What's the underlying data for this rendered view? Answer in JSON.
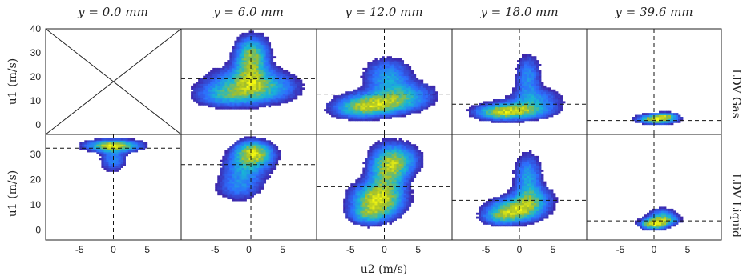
{
  "figure": {
    "column_titles": [
      "y = 0.0 mm",
      "y = 6.0 mm",
      "y = 12.0 mm",
      "y = 18.0 mm",
      "y = 39.6 mm"
    ],
    "row_labels": [
      "LDV Gas",
      "LDV Liquid"
    ],
    "xlabel": "u2 (m/s)",
    "ylabel": "u1 (m/s)"
  },
  "chart_data": {
    "type": "heatmap",
    "description_axes": {
      "x": {
        "label": "u2 (m/s)",
        "range": [
          -10,
          10
        ],
        "ticks": [
          -5,
          0,
          5
        ]
      },
      "y_top_row": {
        "label": "u1 (m/s)",
        "range": [
          -4,
          40
        ],
        "ticks": [
          0,
          10,
          20,
          30,
          40
        ]
      },
      "y_bottom_row": {
        "label": "u1 (m/s)",
        "range": [
          -4,
          38
        ],
        "ticks": [
          0,
          10,
          20,
          30
        ]
      }
    },
    "colormap": [
      "#3e26a8",
      "#2d6efe",
      "#18b7d3",
      "#a4be2a",
      "#f9fb0e"
    ],
    "panels": [
      {
        "row": "LDV Gas",
        "column": "y = 0.0 mm",
        "empty": true
      },
      {
        "row": "LDV Gas",
        "column": "y = 6.0 mm",
        "mean_u2": 0.3,
        "mean_u1": 19.2,
        "blobs": [
          {
            "cx": -0.5,
            "cy": 17,
            "sx": 3.8,
            "sy": 4.5,
            "w": 0.6
          },
          {
            "cx": 0.5,
            "cy": 30,
            "sx": 1.6,
            "sy": 5,
            "w": 0.55
          },
          {
            "cx": 0.3,
            "cy": 24,
            "sx": 1.5,
            "sy": 6,
            "w": 0.45
          },
          {
            "cx": -3.5,
            "cy": 12,
            "sx": 3,
            "sy": 3,
            "w": 0.4
          },
          {
            "cx": 3.0,
            "cy": 15,
            "sx": 3,
            "sy": 4,
            "w": 0.3
          }
        ],
        "peaks": [
          {
            "u2": 0.0,
            "u1": 16
          },
          {
            "u2": 0.5,
            "u1": 31
          }
        ]
      },
      {
        "row": "LDV Gas",
        "column": "y = 12.0 mm",
        "mean_u2": 0.0,
        "mean_u1": 12.8,
        "blobs": [
          {
            "cx": -1.0,
            "cy": 9,
            "sx": 3.5,
            "sy": 3.0,
            "w": 0.8
          },
          {
            "cx": 0.5,
            "cy": 20,
            "sx": 2.2,
            "sy": 5,
            "w": 0.45
          },
          {
            "cx": 3.5,
            "cy": 13,
            "sx": 2.8,
            "sy": 3.5,
            "w": 0.35
          },
          {
            "cx": -4.0,
            "cy": 6,
            "sx": 2.5,
            "sy": 2.5,
            "w": 0.35
          }
        ],
        "peaks": [
          {
            "u2": -0.8,
            "u1": 10
          }
        ]
      },
      {
        "row": "LDV Gas",
        "column": "y = 18.0 mm",
        "mean_u2": 0.0,
        "mean_u1": 8.6,
        "blobs": [
          {
            "cx": -0.5,
            "cy": 6,
            "sx": 3.2,
            "sy": 2.3,
            "w": 0.8
          },
          {
            "cx": 1.3,
            "cy": 20,
            "sx": 1.2,
            "sy": 6,
            "w": 0.4
          },
          {
            "cx": 2.5,
            "cy": 11,
            "sx": 2.5,
            "sy": 3,
            "w": 0.35
          },
          {
            "cx": -3.5,
            "cy": 5,
            "sx": 2.2,
            "sy": 2,
            "w": 0.35
          }
        ],
        "peaks": [
          {
            "u2": -0.3,
            "u1": 6
          }
        ]
      },
      {
        "row": "LDV Gas",
        "column": "y = 39.6 mm",
        "mean_u2": 0.0,
        "mean_u1": 1.8,
        "blobs": [
          {
            "cx": 0.5,
            "cy": 2.5,
            "sx": 1.8,
            "sy": 1.2,
            "w": 0.9
          },
          {
            "cx": 1.8,
            "cy": 4.0,
            "sx": 1.0,
            "sy": 0.8,
            "w": 0.4
          }
        ],
        "peaks": [
          {
            "u2": -0.3,
            "u1": 1.8
          }
        ]
      },
      {
        "row": "LDV Liquid",
        "column": "y = 0.0 mm",
        "mean_u2": 0.0,
        "mean_u1": 32.5,
        "blobs": [
          {
            "cx": 0.0,
            "cy": 33.5,
            "sx": 2.5,
            "sy": 1.5,
            "w": 1.0
          },
          {
            "cx": 0.0,
            "cy": 28,
            "sx": 1.2,
            "sy": 3,
            "w": 0.4
          }
        ],
        "peaks": [
          {
            "u2": 0.0,
            "u1": 33.5
          }
        ]
      },
      {
        "row": "LDV Liquid",
        "column": "y = 6.0 mm",
        "mean_u2": 0.3,
        "mean_u1": 26.0,
        "blobs": [
          {
            "cx": 0.3,
            "cy": 31,
            "sx": 1.6,
            "sy": 3,
            "w": 0.9
          },
          {
            "cx": -0.5,
            "cy": 25,
            "sx": 2.2,
            "sy": 4,
            "w": 0.55
          },
          {
            "cx": -1.5,
            "cy": 17,
            "sx": 2.2,
            "sy": 3.5,
            "w": 0.4
          },
          {
            "cx": 2.2,
            "cy": 30,
            "sx": 1.5,
            "sy": 3,
            "w": 0.35
          }
        ],
        "peaks": [
          {
            "u2": 0.4,
            "u1": 32
          }
        ]
      },
      {
        "row": "LDV Liquid",
        "column": "y = 12.0 mm",
        "mean_u2": 0.0,
        "mean_u1": 17.2,
        "blobs": [
          {
            "cx": -1.0,
            "cy": 12,
            "sx": 2.4,
            "sy": 4.5,
            "w": 0.8
          },
          {
            "cx": 0.5,
            "cy": 24,
            "sx": 1.8,
            "sy": 6,
            "w": 0.6
          },
          {
            "cx": 2.5,
            "cy": 28,
            "sx": 2.0,
            "sy": 4,
            "w": 0.35
          },
          {
            "cx": -2.5,
            "cy": 6,
            "sx": 1.8,
            "sy": 2.5,
            "w": 0.35
          }
        ],
        "peaks": [
          {
            "u2": -0.3,
            "u1": 12
          },
          {
            "u2": 0.5,
            "u1": 22
          }
        ]
      },
      {
        "row": "LDV Liquid",
        "column": "y = 18.0 mm",
        "mean_u2": 0.0,
        "mean_u1": 11.8,
        "blobs": [
          {
            "cx": -0.5,
            "cy": 8,
            "sx": 2.6,
            "sy": 3.0,
            "w": 0.85
          },
          {
            "cx": 1.3,
            "cy": 21,
            "sx": 1.3,
            "sy": 6,
            "w": 0.45
          },
          {
            "cx": 2.0,
            "cy": 13,
            "sx": 2.0,
            "sy": 3,
            "w": 0.4
          },
          {
            "cx": -3.0,
            "cy": 5,
            "sx": 1.8,
            "sy": 2,
            "w": 0.35
          }
        ],
        "peaks": [
          {
            "u2": 0.0,
            "u1": 8
          }
        ]
      },
      {
        "row": "LDV Liquid",
        "column": "y = 39.6 mm",
        "mean_u2": 0.0,
        "mean_u1": 3.6,
        "blobs": [
          {
            "cx": 0.0,
            "cy": 2.5,
            "sx": 1.3,
            "sy": 1.4,
            "w": 0.9
          },
          {
            "cx": 1.2,
            "cy": 5.5,
            "sx": 1.3,
            "sy": 2.0,
            "w": 0.45
          },
          {
            "cx": 2.3,
            "cy": 4.0,
            "sx": 1.2,
            "sy": 1.2,
            "w": 0.3
          }
        ],
        "peaks": [
          {
            "u2": -0.2,
            "u1": 2.2
          }
        ]
      }
    ]
  }
}
